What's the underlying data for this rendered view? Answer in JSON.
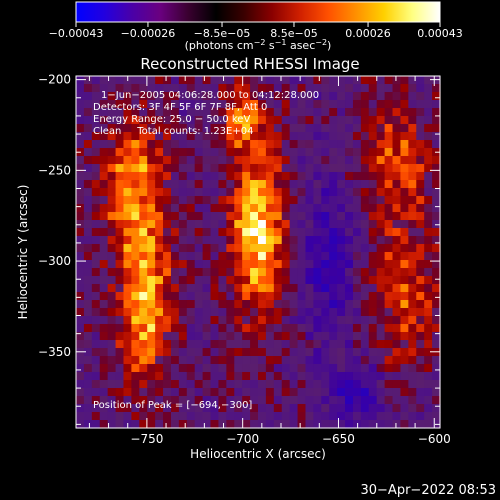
{
  "colorbar": {
    "tick_labels": [
      "−0.00043",
      "−0.00026",
      "−8.5e−05",
      "8.5e−05",
      "0.00026",
      "0.00043"
    ],
    "tick_values": [
      -0.00043,
      -0.00026,
      -8.5e-05,
      8.5e-05,
      0.00026,
      0.00043
    ],
    "range": [
      -0.00043,
      0.00043
    ],
    "units_main": "(photons cm",
    "units_sup1": "−2",
    "units_mid": " s",
    "units_sup2": "−1",
    "units_mid2": " asec",
    "units_sup3": "−2",
    "units_end": ")",
    "colors": [
      "#0000ff",
      "#2200e0",
      "#4a00a8",
      "#6a0080",
      "#3a0030",
      "#000000",
      "#3a0000",
      "#8a0000",
      "#d02000",
      "#ff5000",
      "#ff9000",
      "#ffd000",
      "#ffff80",
      "#ffffff"
    ]
  },
  "chart_data": {
    "type": "heatmap",
    "title": "Reconstructed RHESSI Image",
    "xlabel": "Heliocentric X (arcsec)",
    "ylabel": "Heliocentric Y (arcsec)",
    "xlim": [
      -787,
      -597
    ],
    "ylim": [
      -392,
      -198
    ],
    "x_ticks": [
      -750,
      -700,
      -650,
      -600
    ],
    "y_ticks": [
      -200,
      -250,
      -300,
      -350
    ],
    "x_tick_labels": [
      "−750",
      "−700",
      "−650",
      "−600"
    ],
    "y_tick_labels": [
      "−200",
      "−250",
      "−300",
      "−350"
    ],
    "annotations": [
      "1−Jun−2005 04:06:28.000 to 04:12:28.000",
      "Detectors: 3F 4F 5F 6F 7F 8F, Att 0",
      "Energy Range: 25.0 − 50.0 keV",
      "Clean     Total counts: 1.23E+04"
    ],
    "peak_label": "Position of Peak = [−694,−300]",
    "peak_position": [
      -694,
      -300
    ],
    "sources": [
      {
        "x": -692,
        "y": -282,
        "sigma_x": 10,
        "sigma_y": 35,
        "amplitude": 1.0
      },
      {
        "x": -751,
        "y": -320,
        "sigma_x": 10,
        "sigma_y": 32,
        "amplitude": 0.9
      },
      {
        "x": -757,
        "y": -255,
        "sigma_x": 12,
        "sigma_y": 25,
        "amplitude": 0.7
      },
      {
        "x": -620,
        "y": -245,
        "sigma_x": 12,
        "sigma_y": 25,
        "amplitude": 0.55
      },
      {
        "x": -615,
        "y": -320,
        "sigma_x": 14,
        "sigma_y": 30,
        "amplitude": 0.5
      },
      {
        "x": -700,
        "y": -220,
        "sigma_x": 8,
        "sigma_y": 12,
        "amplitude": 0.55
      },
      {
        "x": -655,
        "y": -300,
        "sigma_x": 10,
        "sigma_y": 30,
        "amplitude": -0.55
      },
      {
        "x": -640,
        "y": -375,
        "sigma_x": 12,
        "sigma_y": 12,
        "amplitude": -0.5
      }
    ]
  },
  "timestamp": "30−Apr−2022 08:53"
}
